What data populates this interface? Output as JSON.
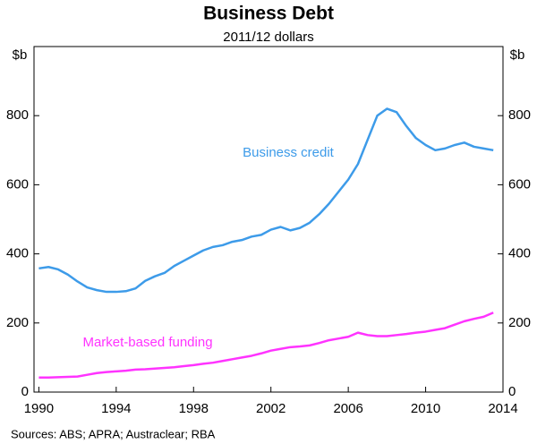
{
  "chart_data": {
    "type": "line",
    "title": "Business Debt",
    "subtitle": "2011/12 dollars",
    "y_label": "$b",
    "y2_label": "$b",
    "source": "Sources: ABS; APRA; Austraclear; RBA",
    "x": [
      1990,
      1990.5,
      1991,
      1991.5,
      1992,
      1992.5,
      1993,
      1993.5,
      1994,
      1994.5,
      1995,
      1995.5,
      1996,
      1996.5,
      1997,
      1997.5,
      1998,
      1998.5,
      1999,
      1999.5,
      2000,
      2000.5,
      2001,
      2001.5,
      2002,
      2002.5,
      2003,
      2003.5,
      2004,
      2004.5,
      2005,
      2005.5,
      2006,
      2006.5,
      2007,
      2007.5,
      2008,
      2008.5,
      2009,
      2009.5,
      2010,
      2010.5,
      2011,
      2011.5,
      2012,
      2012.5,
      2013,
      2013.5
    ],
    "series": [
      {
        "name": "Business credit",
        "color": "#3d9be9",
        "values": [
          358,
          362,
          355,
          340,
          320,
          303,
          295,
          290,
          290,
          292,
          300,
          322,
          335,
          345,
          365,
          380,
          395,
          410,
          420,
          425,
          435,
          440,
          450,
          455,
          470,
          478,
          468,
          475,
          490,
          515,
          545,
          580,
          615,
          660,
          730,
          800,
          820,
          810,
          770,
          735,
          715,
          700,
          705,
          715,
          722,
          710,
          705,
          700
        ]
      },
      {
        "name": "Market-based funding",
        "color": "#ff33ff",
        "values": [
          42,
          42,
          43,
          44,
          45,
          50,
          55,
          58,
          60,
          62,
          65,
          66,
          68,
          70,
          72,
          75,
          78,
          82,
          85,
          90,
          95,
          100,
          105,
          112,
          120,
          125,
          130,
          132,
          135,
          142,
          150,
          155,
          160,
          172,
          165,
          162,
          162,
          165,
          168,
          172,
          175,
          180,
          185,
          195,
          205,
          212,
          218,
          230
        ]
      }
    ],
    "xlim": [
      1989.75,
      2014
    ],
    "xticks": [
      1990,
      1994,
      1998,
      2002,
      2006,
      2010,
      2014
    ],
    "ylim": [
      0,
      1000
    ],
    "yticks": [
      0,
      200,
      400,
      600,
      800
    ],
    "y2lim": [
      0,
      1000
    ],
    "y2ticks": [
      0,
      200,
      400,
      600,
      800
    ]
  }
}
